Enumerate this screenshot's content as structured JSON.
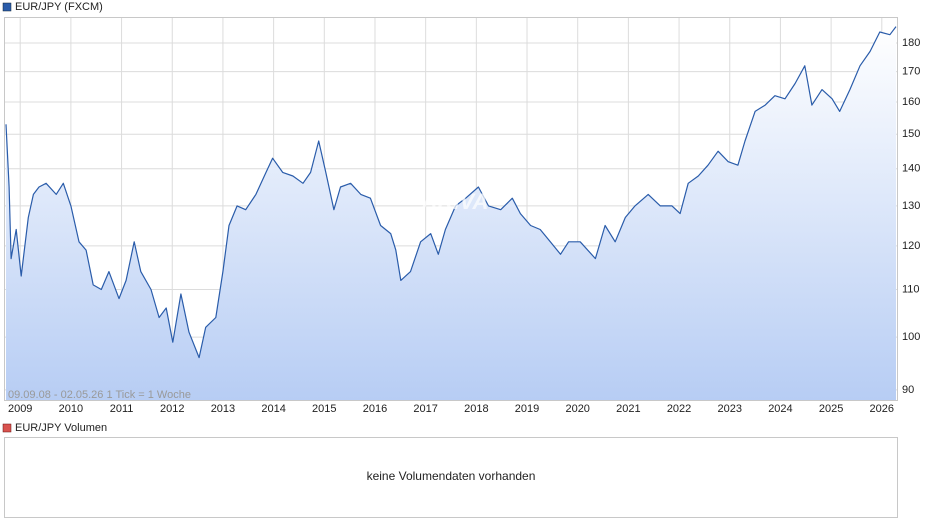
{
  "chart_data": {
    "type": "area",
    "legend_name": "EUR/JPY (FXCM)",
    "color": "#2a5caa",
    "annotation": "09.09.08 - 02.05.26   1 Tick = 1 Woche",
    "watermark": "ARIVA",
    "log_scale": true,
    "grid": true,
    "x": [
      2008.72,
      2008.78,
      2008.82,
      2008.92,
      2009.02,
      2009.16,
      2009.26,
      2009.37,
      2009.51,
      2009.71,
      2009.85,
      2010.0,
      2010.16,
      2010.3,
      2010.44,
      2010.6,
      2010.75,
      2010.95,
      2011.09,
      2011.25,
      2011.38,
      2011.58,
      2011.74,
      2011.88,
      2012.01,
      2012.17,
      2012.33,
      2012.53,
      2012.66,
      2012.86,
      2013.0,
      2013.12,
      2013.28,
      2013.45,
      2013.65,
      2013.85,
      2013.98,
      2014.18,
      2014.38,
      2014.58,
      2014.73,
      2014.89,
      2015.03,
      2015.19,
      2015.32,
      2015.52,
      2015.72,
      2015.91,
      2016.11,
      2016.31,
      2016.41,
      2016.51,
      2016.7,
      2016.9,
      2017.1,
      2017.25,
      2017.39,
      2017.59,
      2017.79,
      2018.04,
      2018.24,
      2018.48,
      2018.71,
      2018.87,
      2019.07,
      2019.26,
      2019.46,
      2019.66,
      2019.82,
      2020.05,
      2020.35,
      2020.54,
      2020.74,
      2020.94,
      2021.13,
      2021.39,
      2021.63,
      2021.86,
      2022.02,
      2022.18,
      2022.38,
      2022.57,
      2022.77,
      2022.97,
      2023.16,
      2023.3,
      2023.5,
      2023.7,
      2023.89,
      2024.09,
      2024.29,
      2024.48,
      2024.62,
      2024.82,
      2025.02,
      2025.17,
      2025.37,
      2025.57,
      2025.77,
      2025.96,
      2026.16,
      2026.28
    ],
    "values": [
      153,
      135,
      117,
      124,
      113,
      127,
      133,
      135,
      136,
      133,
      136,
      130,
      121,
      119,
      111,
      110,
      114,
      108,
      112,
      121,
      114,
      110,
      104,
      106,
      99,
      109,
      101,
      96,
      102,
      104,
      114,
      125,
      130,
      129,
      133,
      139,
      143,
      139,
      138,
      136,
      139,
      148,
      139,
      129,
      135,
      136,
      133,
      132,
      125,
      123,
      119,
      112,
      114,
      121,
      123,
      118,
      124,
      130,
      132,
      135,
      130,
      129,
      132,
      128,
      125,
      124,
      121,
      118,
      121,
      121,
      117,
      125,
      121,
      127,
      130,
      133,
      130,
      130,
      128,
      136,
      138,
      141,
      145,
      142,
      141,
      148,
      157,
      159,
      162,
      161,
      166,
      172,
      159,
      164,
      161,
      157,
      164,
      172,
      177,
      184,
      183,
      186
    ],
    "xlim": [
      2008.7,
      2026.3
    ],
    "xticks": [
      2009,
      2010,
      2011,
      2012,
      2013,
      2014,
      2015,
      2016,
      2017,
      2018,
      2019,
      2020,
      2021,
      2022,
      2023,
      2024,
      2025,
      2026
    ],
    "ylim": [
      88.2,
      189.6
    ],
    "yticks": [
      90,
      100,
      110,
      120,
      130,
      140,
      150,
      160,
      170,
      180
    ]
  },
  "volume_panel": {
    "legend_name": "EUR/JPY Volumen",
    "message": "keine Volumendaten vorhanden"
  }
}
